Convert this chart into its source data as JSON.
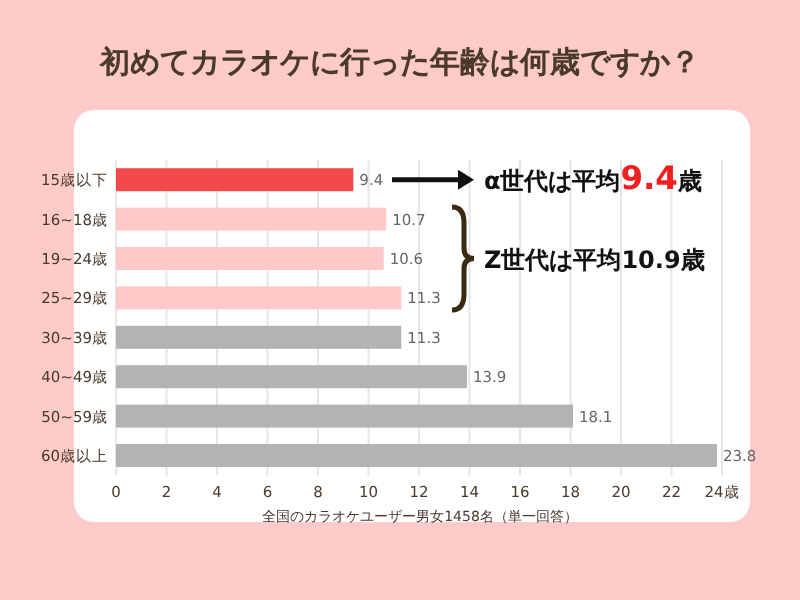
{
  "chart_data": {
    "type": "bar",
    "orientation": "horizontal",
    "title": "初めてカラオケに行った年齢は何歳ですか？",
    "xlabel": "全国のカラオケユーザー男女1458名（単一回答）",
    "categories": [
      "15歳以下",
      "16~18歳",
      "19~24歳",
      "25~29歳",
      "30~39歳",
      "40~49歳",
      "50~59歳",
      "60歳以上"
    ],
    "values": [
      9.4,
      10.7,
      10.6,
      11.3,
      11.3,
      13.9,
      18.1,
      23.8
    ],
    "colors": [
      "#f24a4a",
      "#ffc9c9",
      "#ffc9c9",
      "#ffc9c9",
      "#b3b3b3",
      "#b3b3b3",
      "#b3b3b3",
      "#b3b3b3"
    ],
    "data_labels": true,
    "xlim": [
      0,
      24
    ],
    "xticks": [
      0,
      2,
      4,
      6,
      8,
      10,
      12,
      14,
      16,
      18,
      20,
      22,
      {
        "value": 24,
        "label": "24歳"
      }
    ],
    "grid": "x",
    "annotations": [
      "α世代は平均**9.4**歳",
      "Z世代は平均10.9歳"
    ]
  }
}
